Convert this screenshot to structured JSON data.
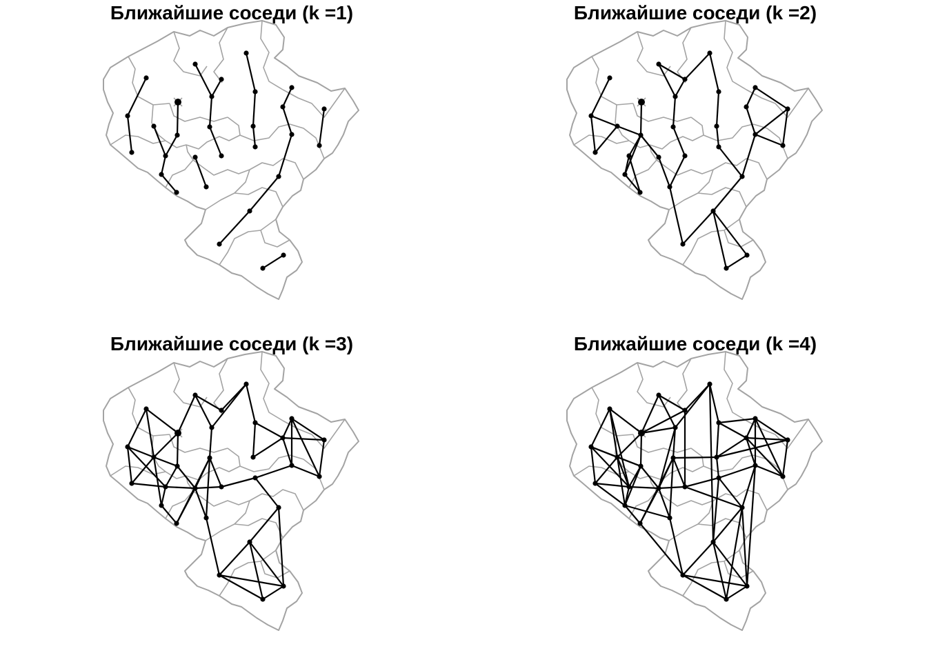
{
  "panels": [
    {
      "title": "Ближайшие соседи (k =1)",
      "k": 1
    },
    {
      "title": "Ближайшие соседи (k =2)",
      "k": 2
    },
    {
      "title": "Ближайшие соседи (k =3)",
      "k": 3
    },
    {
      "title": "Ближайшие соседи (k =4)",
      "k": 4
    }
  ],
  "colors": {
    "boundary": "#a3a3a3",
    "network": "#000000",
    "background": "#ffffff"
  }
}
